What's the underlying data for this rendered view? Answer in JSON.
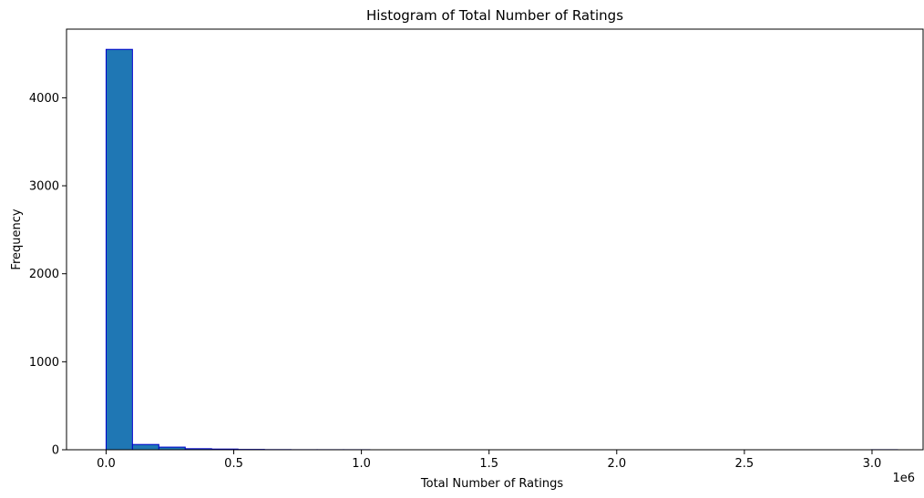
{
  "chart_data": {
    "type": "bar",
    "title": "Histogram of Total Number of Ratings",
    "xlabel": "Total Number of Ratings",
    "ylabel": "Frequency",
    "x_offset_label": "1e6",
    "xlim": [
      -0.155,
      3.2
    ],
    "ylim": [
      0,
      4780
    ],
    "x_ticks": [
      0.0,
      0.5,
      1.0,
      1.5,
      2.0,
      2.5,
      3.0
    ],
    "x_tick_labels": [
      "0.0",
      "0.5",
      "1.0",
      "1.5",
      "2.0",
      "2.5",
      "3.0"
    ],
    "y_ticks": [
      0,
      1000,
      2000,
      3000,
      4000
    ],
    "y_tick_labels": [
      "0",
      "1000",
      "2000",
      "3000",
      "4000"
    ],
    "bin_edges": [
      0.0,
      0.1033,
      0.2067,
      0.31,
      0.4133,
      0.5167,
      0.62,
      0.7233,
      0.8267,
      0.93,
      1.0333,
      1.1367,
      1.24,
      1.3433,
      1.4467,
      1.55,
      1.6533,
      1.7567,
      1.86,
      1.9633,
      2.0667,
      2.17,
      2.2733,
      2.3767,
      2.48,
      2.5833,
      2.6867,
      2.79,
      2.8933,
      2.9967,
      3.1
    ],
    "values": [
      4550,
      60,
      30,
      12,
      8,
      4,
      2,
      1,
      1,
      1,
      0,
      0,
      0,
      0,
      0,
      0,
      0,
      0,
      0,
      0,
      0,
      0,
      0,
      0,
      0,
      0,
      0,
      0,
      0,
      1
    ],
    "bar_color": "#1f77b4",
    "edge_color": "#0000cd",
    "grid": false
  }
}
